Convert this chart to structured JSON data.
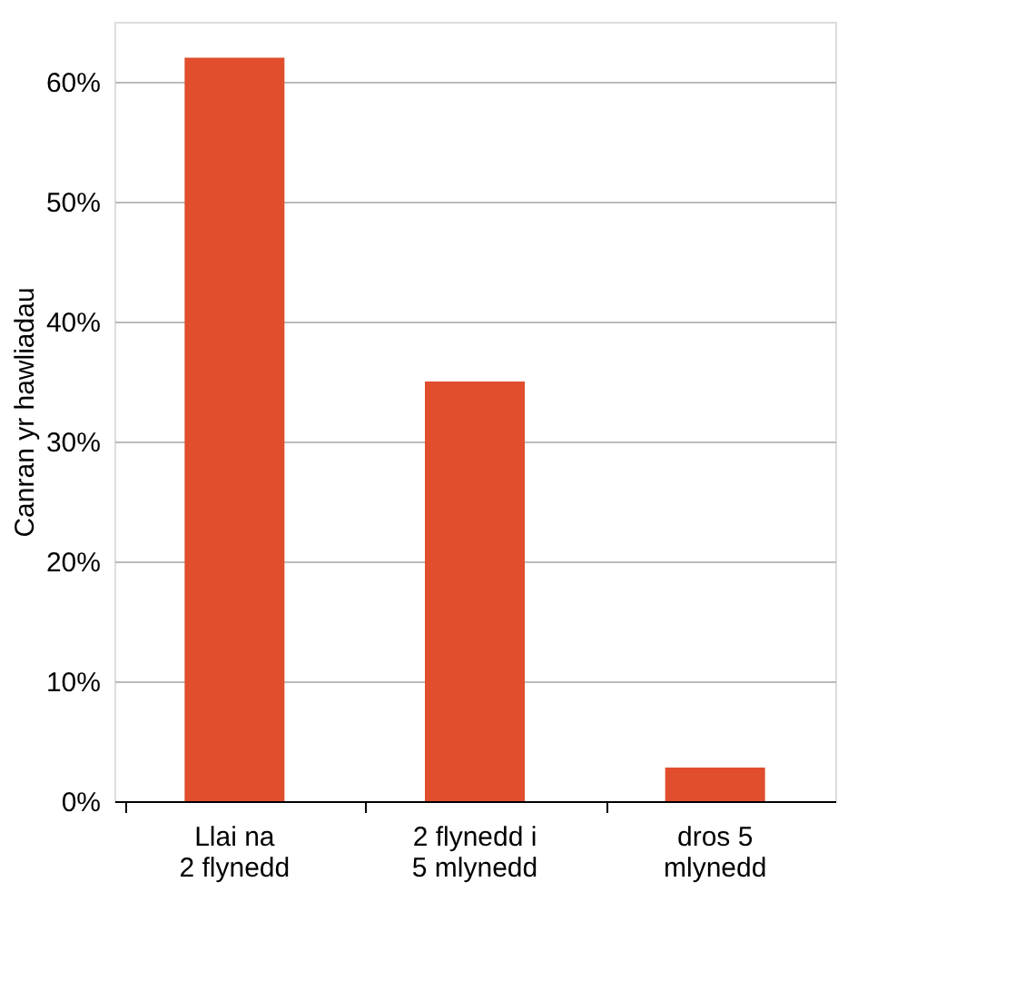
{
  "chart_data": {
    "type": "bar",
    "ylabel": "Canran yr hawliadau",
    "categories": [
      "Llai na\n2 flynedd",
      "2 flynedd i\n5 mlynedd",
      "dros 5\nmlynedd"
    ],
    "values": [
      62,
      35,
      2.8
    ],
    "color": "#e04e2e",
    "ylim": [
      0,
      65
    ],
    "yticks": [
      {
        "value": 0,
        "label": "0%"
      },
      {
        "value": 10,
        "label": "10%"
      },
      {
        "value": 20,
        "label": "20%"
      },
      {
        "value": 30,
        "label": "30%"
      },
      {
        "value": 40,
        "label": "40%"
      },
      {
        "value": 50,
        "label": "50%"
      },
      {
        "value": 60,
        "label": "60%"
      }
    ],
    "grid": "y"
  }
}
